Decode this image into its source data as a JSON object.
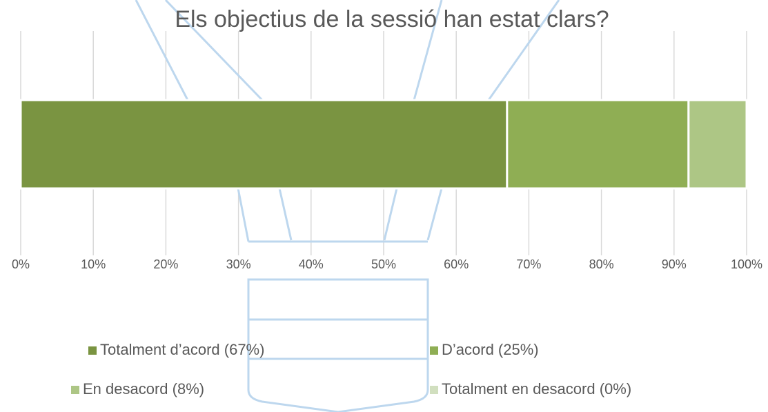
{
  "chart_data": {
    "type": "stacked-bar",
    "title": "Els objectius de la sessió han estat clars?",
    "series": [
      {
        "name": "Totalment d’acord (67%)",
        "color": "#7a9441",
        "values": [
          67
        ]
      },
      {
        "name": "D’acord (25%)",
        "color": "#8fae54",
        "values": [
          25
        ]
      },
      {
        "name": "En desacord (8%)",
        "color": "#adc685",
        "values": [
          8
        ]
      },
      {
        "name": "Totalment en desacord (0%)",
        "color": "#d1dfbf",
        "values": [
          0
        ]
      }
    ],
    "xlim": [
      0,
      100
    ],
    "xticks": [
      {
        "value": 0,
        "label": "0%"
      },
      {
        "value": 10,
        "label": "10%"
      },
      {
        "value": 20,
        "label": "20%"
      },
      {
        "value": 30,
        "label": "30%"
      },
      {
        "value": 40,
        "label": "40%"
      },
      {
        "value": 50,
        "label": "50%"
      },
      {
        "value": 60,
        "label": "60%"
      },
      {
        "value": 70,
        "label": "70%"
      },
      {
        "value": 80,
        "label": "80%"
      },
      {
        "value": 90,
        "label": "90%"
      },
      {
        "value": 100,
        "label": "100%"
      }
    ],
    "grid": true,
    "legend": "bottom"
  }
}
